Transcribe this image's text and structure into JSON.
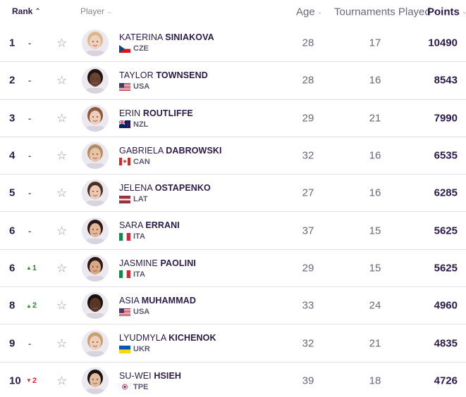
{
  "header": {
    "rank": "Rank",
    "player": "Player",
    "age": "Age",
    "tournaments": "Tournaments Played",
    "points": "Points"
  },
  "players": [
    {
      "rank": "1",
      "move": "-",
      "move_dir": "none",
      "first": "KATERINA",
      "last": "SINIAKOVA",
      "country": "CZE",
      "age": "28",
      "tournaments": "17",
      "points": "10490",
      "skin": "#f1d0bd",
      "hair": "#d9b98a"
    },
    {
      "rank": "2",
      "move": "-",
      "move_dir": "none",
      "first": "TAYLOR",
      "last": "TOWNSEND",
      "country": "USA",
      "age": "28",
      "tournaments": "16",
      "points": "8543",
      "skin": "#6b4331",
      "hair": "#1f1410"
    },
    {
      "rank": "3",
      "move": "-",
      "move_dir": "none",
      "first": "ERIN",
      "last": "ROUTLIFFE",
      "country": "NZL",
      "age": "29",
      "tournaments": "21",
      "points": "7990",
      "skin": "#f0cdb8",
      "hair": "#8a5a3a"
    },
    {
      "rank": "4",
      "move": "-",
      "move_dir": "none",
      "first": "GABRIELA",
      "last": "DABROWSKI",
      "country": "CAN",
      "age": "32",
      "tournaments": "16",
      "points": "6535",
      "skin": "#e9c3a8",
      "hair": "#b58d62"
    },
    {
      "rank": "5",
      "move": "-",
      "move_dir": "none",
      "first": "JELENA",
      "last": "OSTAPENKO",
      "country": "LAT",
      "age": "27",
      "tournaments": "16",
      "points": "6285",
      "skin": "#edc9b2",
      "hair": "#4a3022"
    },
    {
      "rank": "6",
      "move": "-",
      "move_dir": "none",
      "first": "SARA",
      "last": "ERRANI",
      "country": "ITA",
      "age": "37",
      "tournaments": "15",
      "points": "5625",
      "skin": "#e3b898",
      "hair": "#2a1a12"
    },
    {
      "rank": "6",
      "move": "1",
      "move_dir": "up",
      "first": "JASMINE",
      "last": "PAOLINI",
      "country": "ITA",
      "age": "29",
      "tournaments": "15",
      "points": "5625",
      "skin": "#d9a884",
      "hair": "#2a1a12"
    },
    {
      "rank": "8",
      "move": "2",
      "move_dir": "up",
      "first": "ASIA",
      "last": "MUHAMMAD",
      "country": "USA",
      "age": "33",
      "tournaments": "24",
      "points": "4960",
      "skin": "#5a3626",
      "hair": "#1a100c"
    },
    {
      "rank": "9",
      "move": "-",
      "move_dir": "none",
      "first": "LYUDMYLA",
      "last": "KICHENOK",
      "country": "UKR",
      "age": "32",
      "tournaments": "21",
      "points": "4835",
      "skin": "#f0cdb8",
      "hair": "#c9a070"
    },
    {
      "rank": "10",
      "move": "2",
      "move_dir": "down",
      "first": "SU-WEI",
      "last": "HSIEH",
      "country": "TPE",
      "age": "39",
      "tournaments": "18",
      "points": "4726",
      "skin": "#e6bd9c",
      "hair": "#1a1210"
    }
  ],
  "colors": {
    "text_primary": "#2a1a4a",
    "up": "#2f8a3a",
    "down": "#d8283a",
    "divider": "#e3e0e8"
  }
}
